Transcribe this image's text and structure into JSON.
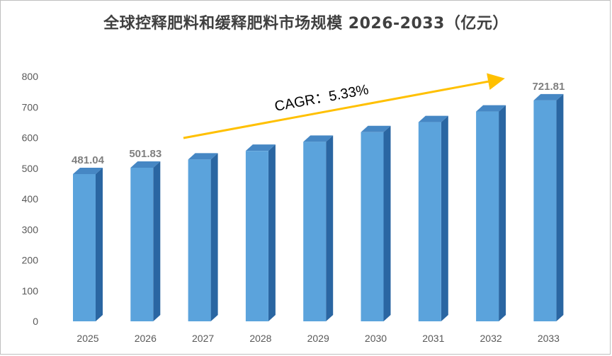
{
  "chart_data": {
    "type": "bar",
    "title": "全球控释肥料和缓释肥料市场规模 2026-2033（亿元）",
    "categories": [
      "2025",
      "2026",
      "2027",
      "2028",
      "2029",
      "2030",
      "2031",
      "2032",
      "2033"
    ],
    "values": [
      481.04,
      501.83,
      528.6,
      556.8,
      586.5,
      617.8,
      650.7,
      685.4,
      721.81
    ],
    "data_labels": [
      "481.04",
      "501.83",
      "",
      "",
      "",
      "",
      "",
      "",
      "721.81"
    ],
    "ylim": [
      0,
      800
    ],
    "yticks": [
      0,
      100,
      200,
      300,
      400,
      500,
      600,
      700,
      800
    ],
    "grid": false,
    "legend": "none",
    "annotation": "CAGR：5.33%",
    "colors": {
      "bar_front": "#5ba3dc",
      "bar_side": "#2a66a2",
      "bar_top": "#4687c4",
      "arrow": "#ffc000"
    }
  }
}
